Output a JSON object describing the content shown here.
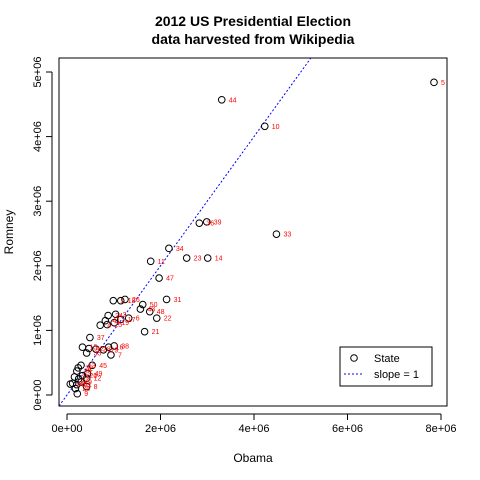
{
  "chart_data": {
    "type": "scatter",
    "title": "2012 US Presidential Election",
    "subtitle": "data harvested from Wikipedia",
    "xlabel": "Obama",
    "ylabel": "Romney",
    "xlim": [
      -250000,
      8200000
    ],
    "ylim": [
      -250000,
      5000000
    ],
    "x_ticks": [
      0,
      2000000,
      4000000,
      6000000,
      8000000
    ],
    "x_tick_labels": [
      "0e+00",
      "2e+06",
      "4e+06",
      "6e+06",
      "8e+06"
    ],
    "y_ticks": [
      0,
      1000000,
      2000000,
      3000000,
      4000000,
      5000000
    ],
    "y_tick_labels": [
      "0e+00",
      "1e+06",
      "2e+06",
      "3e+06",
      "4e+06",
      "5e+06"
    ],
    "grid": false,
    "legend_position": "bottom-right",
    "legend": [
      {
        "label": "State",
        "symbol": "o"
      },
      {
        "label": "slope = 1",
        "symbol": "dotted-line",
        "color": "#0000ff"
      }
    ],
    "reference_line": {
      "slope": 1,
      "intercept": 0,
      "color": "#0000ff",
      "style": "dotted"
    },
    "point_color": "#000000",
    "label_color": "#ff0000",
    "points": [
      {
        "x": 7850000,
        "y": 4840000,
        "label": "5"
      },
      {
        "x": 3310000,
        "y": 4570000,
        "label": "44"
      },
      {
        "x": 4230000,
        "y": 4160000,
        "label": "10"
      },
      {
        "x": 4480000,
        "y": 2490000,
        "label": "33"
      },
      {
        "x": 2990000,
        "y": 2680000,
        "label": "39"
      },
      {
        "x": 2830000,
        "y": 2660000,
        "label": "36"
      },
      {
        "x": 2180000,
        "y": 2270000,
        "label": "34"
      },
      {
        "x": 3010000,
        "y": 2120000,
        "label": "14"
      },
      {
        "x": 2560000,
        "y": 2120000,
        "label": "23"
      },
      {
        "x": 1790000,
        "y": 2070000,
        "label": "11"
      },
      {
        "x": 1970000,
        "y": 1810000,
        "label": "47"
      },
      {
        "x": 2130000,
        "y": 1480000,
        "label": "31"
      },
      {
        "x": 1240000,
        "y": 1480000,
        "label": "26"
      },
      {
        "x": 1150000,
        "y": 1460000,
        "label": "18"
      },
      {
        "x": 1620000,
        "y": 1400000,
        "label": "50"
      },
      {
        "x": 1770000,
        "y": 1290000,
        "label": "48"
      },
      {
        "x": 1570000,
        "y": 1330000,
        "label": "43"
      },
      {
        "x": 1920000,
        "y": 1190000,
        "label": "22"
      },
      {
        "x": 1660000,
        "y": 980000,
        "label": "21"
      },
      {
        "x": 1320000,
        "y": 1190000,
        "label": "6"
      },
      {
        "x": 1040000,
        "y": 1250000,
        "label": "3"
      },
      {
        "x": 1150000,
        "y": 1170000,
        "label": "17"
      },
      {
        "x": 990000,
        "y": 1460000,
        "label": "1"
      },
      {
        "x": 880000,
        "y": 1230000,
        "label": "24"
      },
      {
        "x": 820000,
        "y": 1150000,
        "label": "41"
      },
      {
        "x": 1010000,
        "y": 1120000,
        "label": "19"
      },
      {
        "x": 860000,
        "y": 1090000,
        "label": "25"
      },
      {
        "x": 710000,
        "y": 1080000,
        "label": "4"
      },
      {
        "x": 490000,
        "y": 890000,
        "label": "37"
      },
      {
        "x": 1010000,
        "y": 760000,
        "label": "38"
      },
      {
        "x": 890000,
        "y": 740000,
        "label": "16"
      },
      {
        "x": 780000,
        "y": 700000,
        "label": "29"
      },
      {
        "x": 330000,
        "y": 740000,
        "label": "15"
      },
      {
        "x": 470000,
        "y": 720000,
        "label": "42"
      },
      {
        "x": 620000,
        "y": 710000,
        "label": "28"
      },
      {
        "x": 940000,
        "y": 620000,
        "label": "7"
      },
      {
        "x": 420000,
        "y": 650000,
        "label": "35"
      },
      {
        "x": 540000,
        "y": 460000,
        "label": "45"
      },
      {
        "x": 300000,
        "y": 460000,
        "label": "13"
      },
      {
        "x": 240000,
        "y": 420000,
        "label": "32"
      },
      {
        "x": 210000,
        "y": 370000,
        "label": "30"
      },
      {
        "x": 440000,
        "y": 330000,
        "label": "49"
      },
      {
        "x": 330000,
        "y": 300000,
        "label": "20"
      },
      {
        "x": 160000,
        "y": 280000,
        "label": "27"
      },
      {
        "x": 420000,
        "y": 260000,
        "label": "12"
      },
      {
        "x": 250000,
        "y": 250000,
        "label": "2"
      },
      {
        "x": 300000,
        "y": 200000,
        "label": "9"
      },
      {
        "x": 120000,
        "y": 180000,
        "label": "46"
      },
      {
        "x": 210000,
        "y": 160000,
        "label": "51"
      },
      {
        "x": 70000,
        "y": 170000,
        "label": "40"
      },
      {
        "x": 420000,
        "y": 130000,
        "label": "8"
      },
      {
        "x": 180000,
        "y": 100000,
        "label": "26"
      },
      {
        "x": 220000,
        "y": 20000,
        "label": "9"
      }
    ]
  }
}
